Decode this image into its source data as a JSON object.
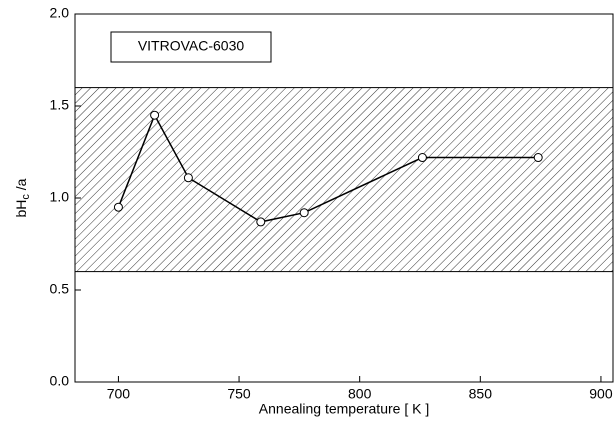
{
  "chart_data": {
    "type": "line",
    "xlabel": "Annealing temperature [ K ]",
    "ylabel": {
      "main": "bH",
      "sub": "c",
      "rest": " /a"
    },
    "annotation": "VITROVAC-6030",
    "x": [
      700,
      715,
      729,
      759,
      777,
      826,
      874
    ],
    "series": [
      {
        "color": "#000000",
        "values": [
          0.95,
          1.45,
          1.11,
          0.87,
          0.92,
          1.22,
          1.22
        ]
      }
    ],
    "band": [
      0.6,
      1.6
    ],
    "xlim": [
      682,
      905
    ],
    "ylim": [
      0,
      2
    ],
    "xticks": [
      700,
      750,
      800,
      850,
      900
    ],
    "yticks": [
      {
        "value": 0,
        "label": "0.0"
      },
      0.5,
      {
        "value": 1,
        "label": "1.0"
      },
      1.5,
      {
        "value": 2,
        "label": "2.0"
      }
    ]
  }
}
